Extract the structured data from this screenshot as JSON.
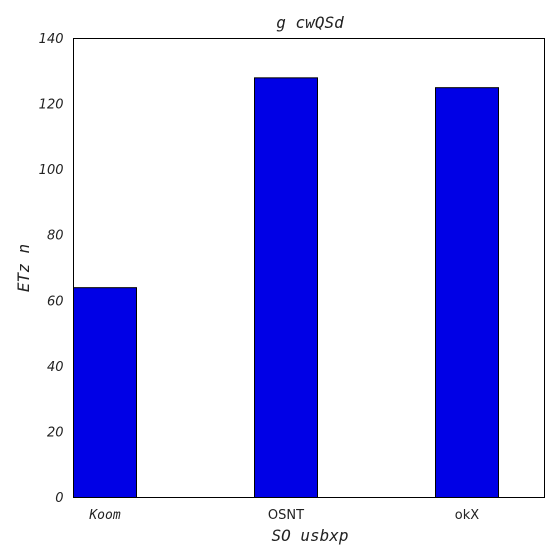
{
  "chart_data": {
    "type": "bar",
    "title": "g cwQSd",
    "xlabel": "SO usbxp",
    "ylabel": "ETz n",
    "categories": [
      "Koom",
      "OSNT",
      "okX"
    ],
    "values": [
      64,
      128,
      125
    ],
    "ylim": [
      0,
      140
    ],
    "yticks": [
      0,
      20,
      40,
      60,
      80,
      100,
      120,
      140
    ],
    "bar_color": "#0000e6",
    "grid": false,
    "legend": "none"
  }
}
